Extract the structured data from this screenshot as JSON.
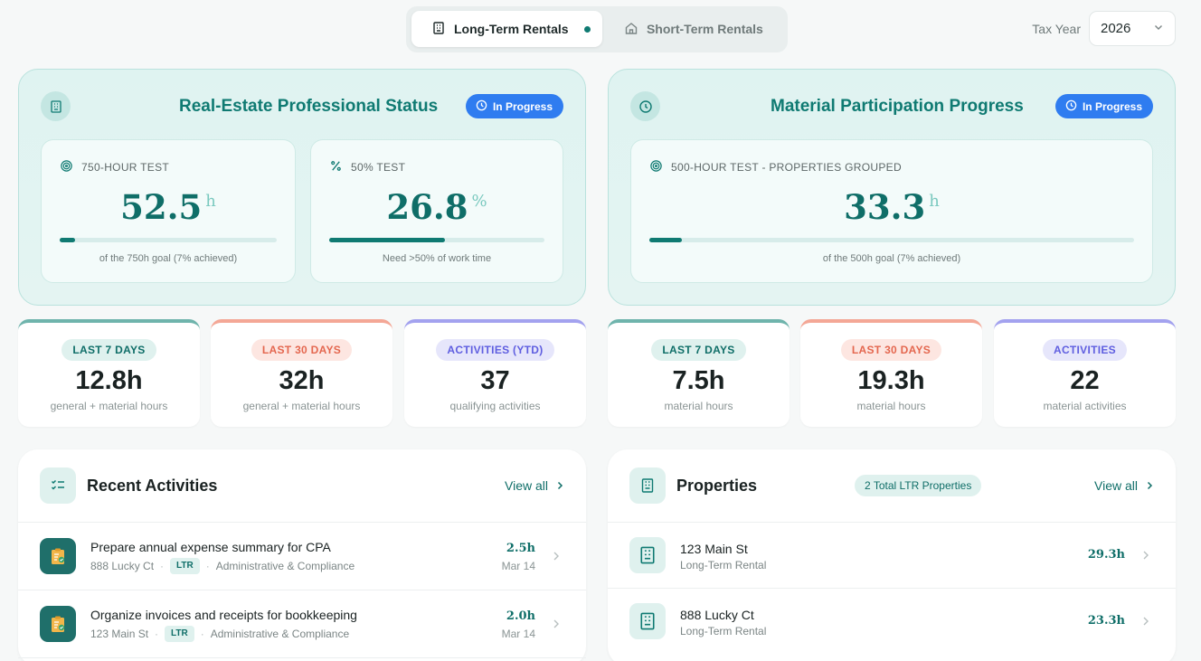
{
  "tabs": [
    {
      "label": "Long-Term Rentals",
      "icon": "building-icon",
      "active": true
    },
    {
      "label": "Short-Term Rentals",
      "icon": "house-icon",
      "active": false
    }
  ],
  "tax_year": {
    "label": "Tax Year",
    "value": "2026"
  },
  "reps_panel": {
    "title": "Real-Estate Professional Status",
    "status": "In Progress",
    "metrics": [
      {
        "label": "750-HOUR TEST",
        "value": "52.5",
        "unit": "h",
        "progress": 0.07,
        "note": "of the 750h goal (7% achieved)"
      },
      {
        "label": "50% TEST",
        "value": "26.8",
        "unit": "%",
        "progress": 0.536,
        "note": "Need >50% of work time"
      }
    ]
  },
  "mp_panel": {
    "title": "Material Participation Progress",
    "status": "In Progress",
    "metric": {
      "label": "500-HOUR TEST - PROPERTIES GROUPED",
      "value": "33.3",
      "unit": "h",
      "progress": 0.067,
      "note": "of the 500h goal (7% achieved)"
    }
  },
  "stats": [
    {
      "label": "LAST 7 DAYS",
      "value": "12.8h",
      "sub": "general + material hours",
      "accent": "#6fb4ac"
    },
    {
      "label": "LAST 30 DAYS",
      "value": "32h",
      "sub": "general + material hours",
      "accent": "#f4a796"
    },
    {
      "label": "ACTIVITIES (YTD)",
      "value": "37",
      "sub": "qualifying activities",
      "accent": "#a3a2ef"
    },
    {
      "label": "LAST 7 DAYS",
      "value": "7.5h",
      "sub": "material hours",
      "accent": "#6fb4ac"
    },
    {
      "label": "LAST 30 DAYS",
      "value": "19.3h",
      "sub": "material hours",
      "accent": "#f4a796"
    },
    {
      "label": "ACTIVITIES",
      "value": "22",
      "sub": "material activities",
      "accent": "#a3a2ef"
    }
  ],
  "recent_activities": {
    "title": "Recent Activities",
    "view_all": "View all",
    "items": [
      {
        "title": "Prepare annual expense summary for CPA",
        "property": "888 Lucky Ct",
        "tag": "LTR",
        "category": "Administrative & Compliance",
        "hours": "2.5h",
        "date": "Mar 14"
      },
      {
        "title": "Organize invoices and receipts for bookkeeping",
        "property": "123 Main St",
        "tag": "LTR",
        "category": "Administrative & Compliance",
        "hours": "2.0h",
        "date": "Mar 14"
      }
    ]
  },
  "properties": {
    "title": "Properties",
    "count": "2 Total LTR Properties",
    "view_all": "View all",
    "items": [
      {
        "name": "123 Main St",
        "type": "Long-Term Rental",
        "hours": "29.3h"
      },
      {
        "name": "888 Lucky Ct",
        "type": "Long-Term Rental",
        "hours": "23.3h"
      }
    ]
  },
  "colors": {
    "primary": "#0f7a72",
    "badge_blue": "#2f7cf0",
    "salmon": "#f4a796",
    "purple": "#a3a2ef"
  }
}
